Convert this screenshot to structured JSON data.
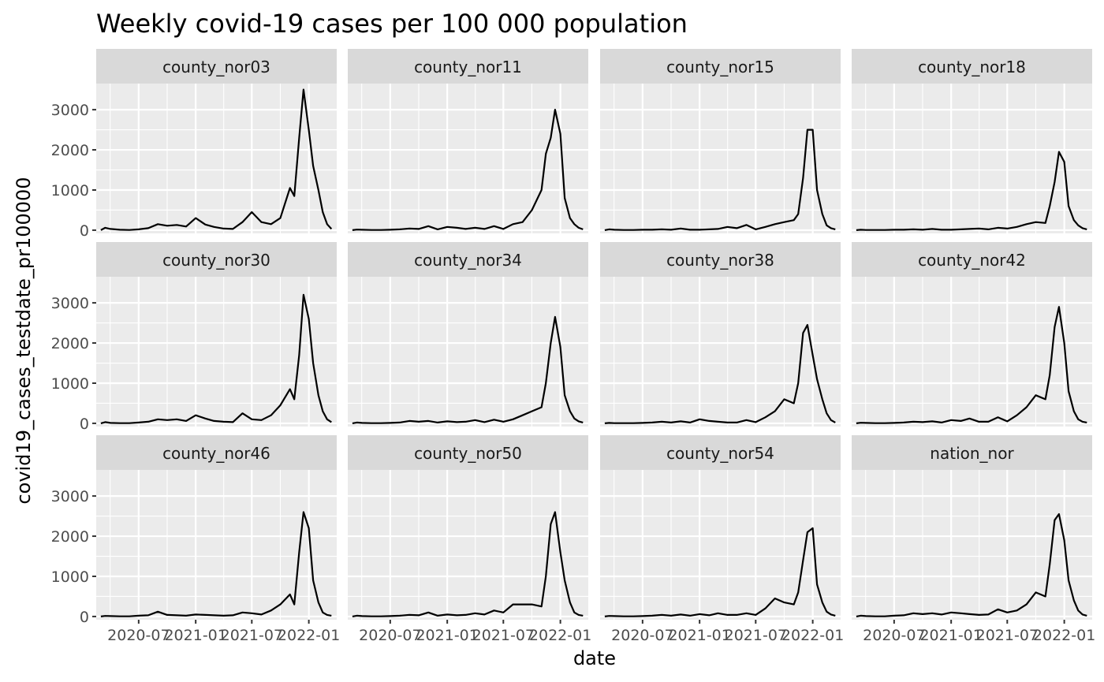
{
  "chart_data": {
    "type": "line",
    "title": "Weekly covid-19 cases per 100 000 population",
    "xlabel": "date",
    "ylabel": "covid19_cases_testdate_pr100000",
    "ylim": [
      -80,
      3650
    ],
    "xlim": [
      "2020-02-15",
      "2022-04-01"
    ],
    "grid": true,
    "facet_layout": {
      "rows": 3,
      "cols": 4
    },
    "x_ticks": [
      {
        "date": "2020-07-01",
        "label": "2020-07"
      },
      {
        "date": "2021-01-01",
        "label": "2021-01"
      },
      {
        "date": "2021-07-01",
        "label": "2021-07"
      },
      {
        "date": "2022-01-01",
        "label": "2022-01"
      }
    ],
    "y_ticks": [
      0,
      1000,
      2000,
      3000
    ],
    "x": [
      "2020-03-01",
      "2020-03-15",
      "2020-04-01",
      "2020-05-01",
      "2020-06-01",
      "2020-07-01",
      "2020-08-01",
      "2020-09-01",
      "2020-10-01",
      "2020-11-01",
      "2020-12-01",
      "2021-01-01",
      "2021-02-01",
      "2021-03-01",
      "2021-04-01",
      "2021-05-01",
      "2021-06-01",
      "2021-07-01",
      "2021-08-01",
      "2021-09-01",
      "2021-10-01",
      "2021-11-01",
      "2021-11-15",
      "2021-12-01",
      "2021-12-15",
      "2022-01-01",
      "2022-01-15",
      "2022-02-01",
      "2022-02-15",
      "2022-03-01",
      "2022-03-15"
    ],
    "series": [
      {
        "name": "county_nor03",
        "values": [
          0,
          60,
          30,
          10,
          5,
          20,
          50,
          150,
          110,
          130,
          90,
          300,
          140,
          80,
          40,
          30,
          200,
          450,
          200,
          150,
          300,
          1050,
          850,
          2300,
          3500,
          2500,
          1600,
          1000,
          450,
          150,
          30
        ]
      },
      {
        "name": "county_nor11",
        "values": [
          0,
          15,
          10,
          5,
          5,
          10,
          20,
          40,
          30,
          100,
          20,
          80,
          60,
          30,
          60,
          30,
          100,
          30,
          150,
          200,
          500,
          1000,
          1900,
          2300,
          3000,
          2400,
          800,
          300,
          150,
          60,
          20
        ]
      },
      {
        "name": "county_nor15",
        "values": [
          0,
          20,
          10,
          5,
          5,
          10,
          10,
          20,
          10,
          40,
          10,
          10,
          20,
          30,
          80,
          50,
          130,
          20,
          80,
          150,
          200,
          250,
          400,
          1300,
          2500,
          2500,
          1000,
          400,
          120,
          50,
          20
        ]
      },
      {
        "name": "county_nor18",
        "values": [
          0,
          10,
          5,
          5,
          5,
          10,
          10,
          20,
          10,
          30,
          10,
          10,
          20,
          30,
          40,
          20,
          60,
          40,
          80,
          150,
          200,
          180,
          600,
          1200,
          1950,
          1700,
          600,
          250,
          120,
          50,
          20
        ]
      },
      {
        "name": "county_nor30",
        "values": [
          0,
          30,
          10,
          5,
          5,
          20,
          40,
          100,
          80,
          100,
          60,
          200,
          120,
          60,
          40,
          30,
          250,
          100,
          80,
          200,
          450,
          850,
          600,
          1700,
          3200,
          2600,
          1500,
          700,
          300,
          100,
          30
        ]
      },
      {
        "name": "county_nor34",
        "values": [
          0,
          20,
          10,
          5,
          5,
          10,
          20,
          60,
          40,
          60,
          20,
          50,
          30,
          40,
          80,
          30,
          90,
          40,
          100,
          200,
          300,
          400,
          1000,
          2000,
          2650,
          1900,
          700,
          300,
          120,
          50,
          20
        ]
      },
      {
        "name": "county_nor38",
        "values": [
          0,
          10,
          5,
          5,
          5,
          10,
          20,
          40,
          20,
          50,
          20,
          100,
          60,
          40,
          20,
          20,
          80,
          30,
          150,
          300,
          600,
          500,
          1000,
          2250,
          2450,
          1700,
          1100,
          600,
          250,
          80,
          20
        ]
      },
      {
        "name": "county_nor42",
        "values": [
          0,
          15,
          10,
          5,
          5,
          10,
          20,
          40,
          30,
          50,
          20,
          80,
          60,
          120,
          40,
          40,
          150,
          50,
          200,
          400,
          700,
          600,
          1200,
          2400,
          2900,
          2000,
          800,
          300,
          100,
          40,
          20
        ]
      },
      {
        "name": "county_nor46",
        "values": [
          0,
          15,
          10,
          5,
          5,
          20,
          30,
          120,
          40,
          30,
          20,
          50,
          40,
          30,
          20,
          30,
          100,
          80,
          50,
          150,
          300,
          550,
          300,
          1600,
          2600,
          2200,
          900,
          350,
          100,
          40,
          20
        ]
      },
      {
        "name": "county_nor50",
        "values": [
          0,
          20,
          10,
          5,
          5,
          10,
          20,
          40,
          30,
          100,
          20,
          50,
          30,
          40,
          80,
          50,
          150,
          100,
          300,
          300,
          300,
          250,
          1000,
          2300,
          2600,
          1600,
          900,
          350,
          100,
          40,
          20
        ]
      },
      {
        "name": "county_nor54",
        "values": [
          0,
          15,
          10,
          5,
          5,
          10,
          20,
          40,
          20,
          50,
          20,
          60,
          30,
          80,
          40,
          40,
          80,
          40,
          200,
          450,
          350,
          300,
          600,
          1400,
          2100,
          2200,
          800,
          350,
          120,
          50,
          20
        ]
      },
      {
        "name": "nation_nor",
        "values": [
          0,
          20,
          10,
          5,
          5,
          20,
          30,
          80,
          60,
          80,
          50,
          100,
          80,
          60,
          40,
          50,
          180,
          100,
          150,
          300,
          600,
          500,
          1300,
          2400,
          2550,
          1900,
          900,
          400,
          150,
          50,
          20
        ]
      }
    ]
  }
}
